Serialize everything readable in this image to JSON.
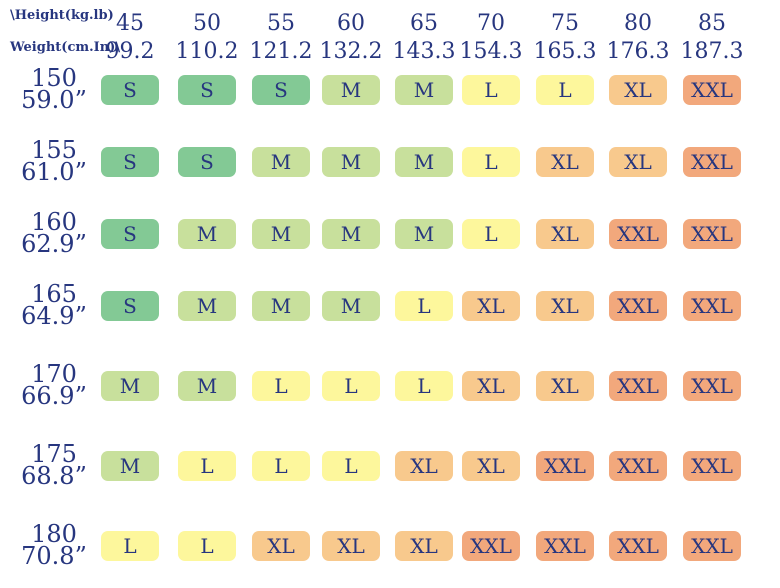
{
  "header": {
    "height_label": "\\Height(kg.lb)",
    "weight_label": "Weight(cm.In)\\"
  },
  "columns": [
    {
      "kg": "45",
      "lb": "99.2"
    },
    {
      "kg": "50",
      "lb": "110.2"
    },
    {
      "kg": "55",
      "lb": "121.2"
    },
    {
      "kg": "60",
      "lb": "132.2"
    },
    {
      "kg": "65",
      "lb": "143.3"
    },
    {
      "kg": "70",
      "lb": "154.3"
    },
    {
      "kg": "75",
      "lb": "165.3"
    },
    {
      "kg": "80",
      "lb": "176.3"
    },
    {
      "kg": "85",
      "lb": "187.3"
    }
  ],
  "rows": [
    {
      "cm": "150",
      "in": "59.0”",
      "sizes": [
        "S",
        "S",
        "S",
        "M",
        "M",
        "L",
        "L",
        "XL",
        "XXL"
      ]
    },
    {
      "cm": "155",
      "in": "61.0”",
      "sizes": [
        "S",
        "S",
        "M",
        "M",
        "M",
        "L",
        "XL",
        "XL",
        "XXL"
      ]
    },
    {
      "cm": "160",
      "in": "62.9”",
      "sizes": [
        "S",
        "M",
        "M",
        "M",
        "M",
        "L",
        "XL",
        "XXL",
        "XXL"
      ]
    },
    {
      "cm": "165",
      "in": "64.9”",
      "sizes": [
        "S",
        "M",
        "M",
        "M",
        "L",
        "XL",
        "XL",
        "XXL",
        "XXL"
      ]
    },
    {
      "cm": "170",
      "in": "66.9”",
      "sizes": [
        "M",
        "M",
        "L",
        "L",
        "L",
        "XL",
        "XL",
        "XXL",
        "XXL"
      ]
    },
    {
      "cm": "175",
      "in": "68.8”",
      "sizes": [
        "M",
        "L",
        "L",
        "L",
        "XL",
        "XL",
        "XXL",
        "XXL",
        "XXL"
      ]
    },
    {
      "cm": "180",
      "in": "70.8”",
      "sizes": [
        "L",
        "L",
        "XL",
        "XL",
        "XL",
        "XXL",
        "XXL",
        "XXL",
        "XXL"
      ]
    }
  ],
  "size_colors": {
    "S": "#83c995",
    "M": "#c8e09c",
    "L": "#fdf79c",
    "XL": "#f8c98d",
    "XXL": "#f2a87c"
  }
}
